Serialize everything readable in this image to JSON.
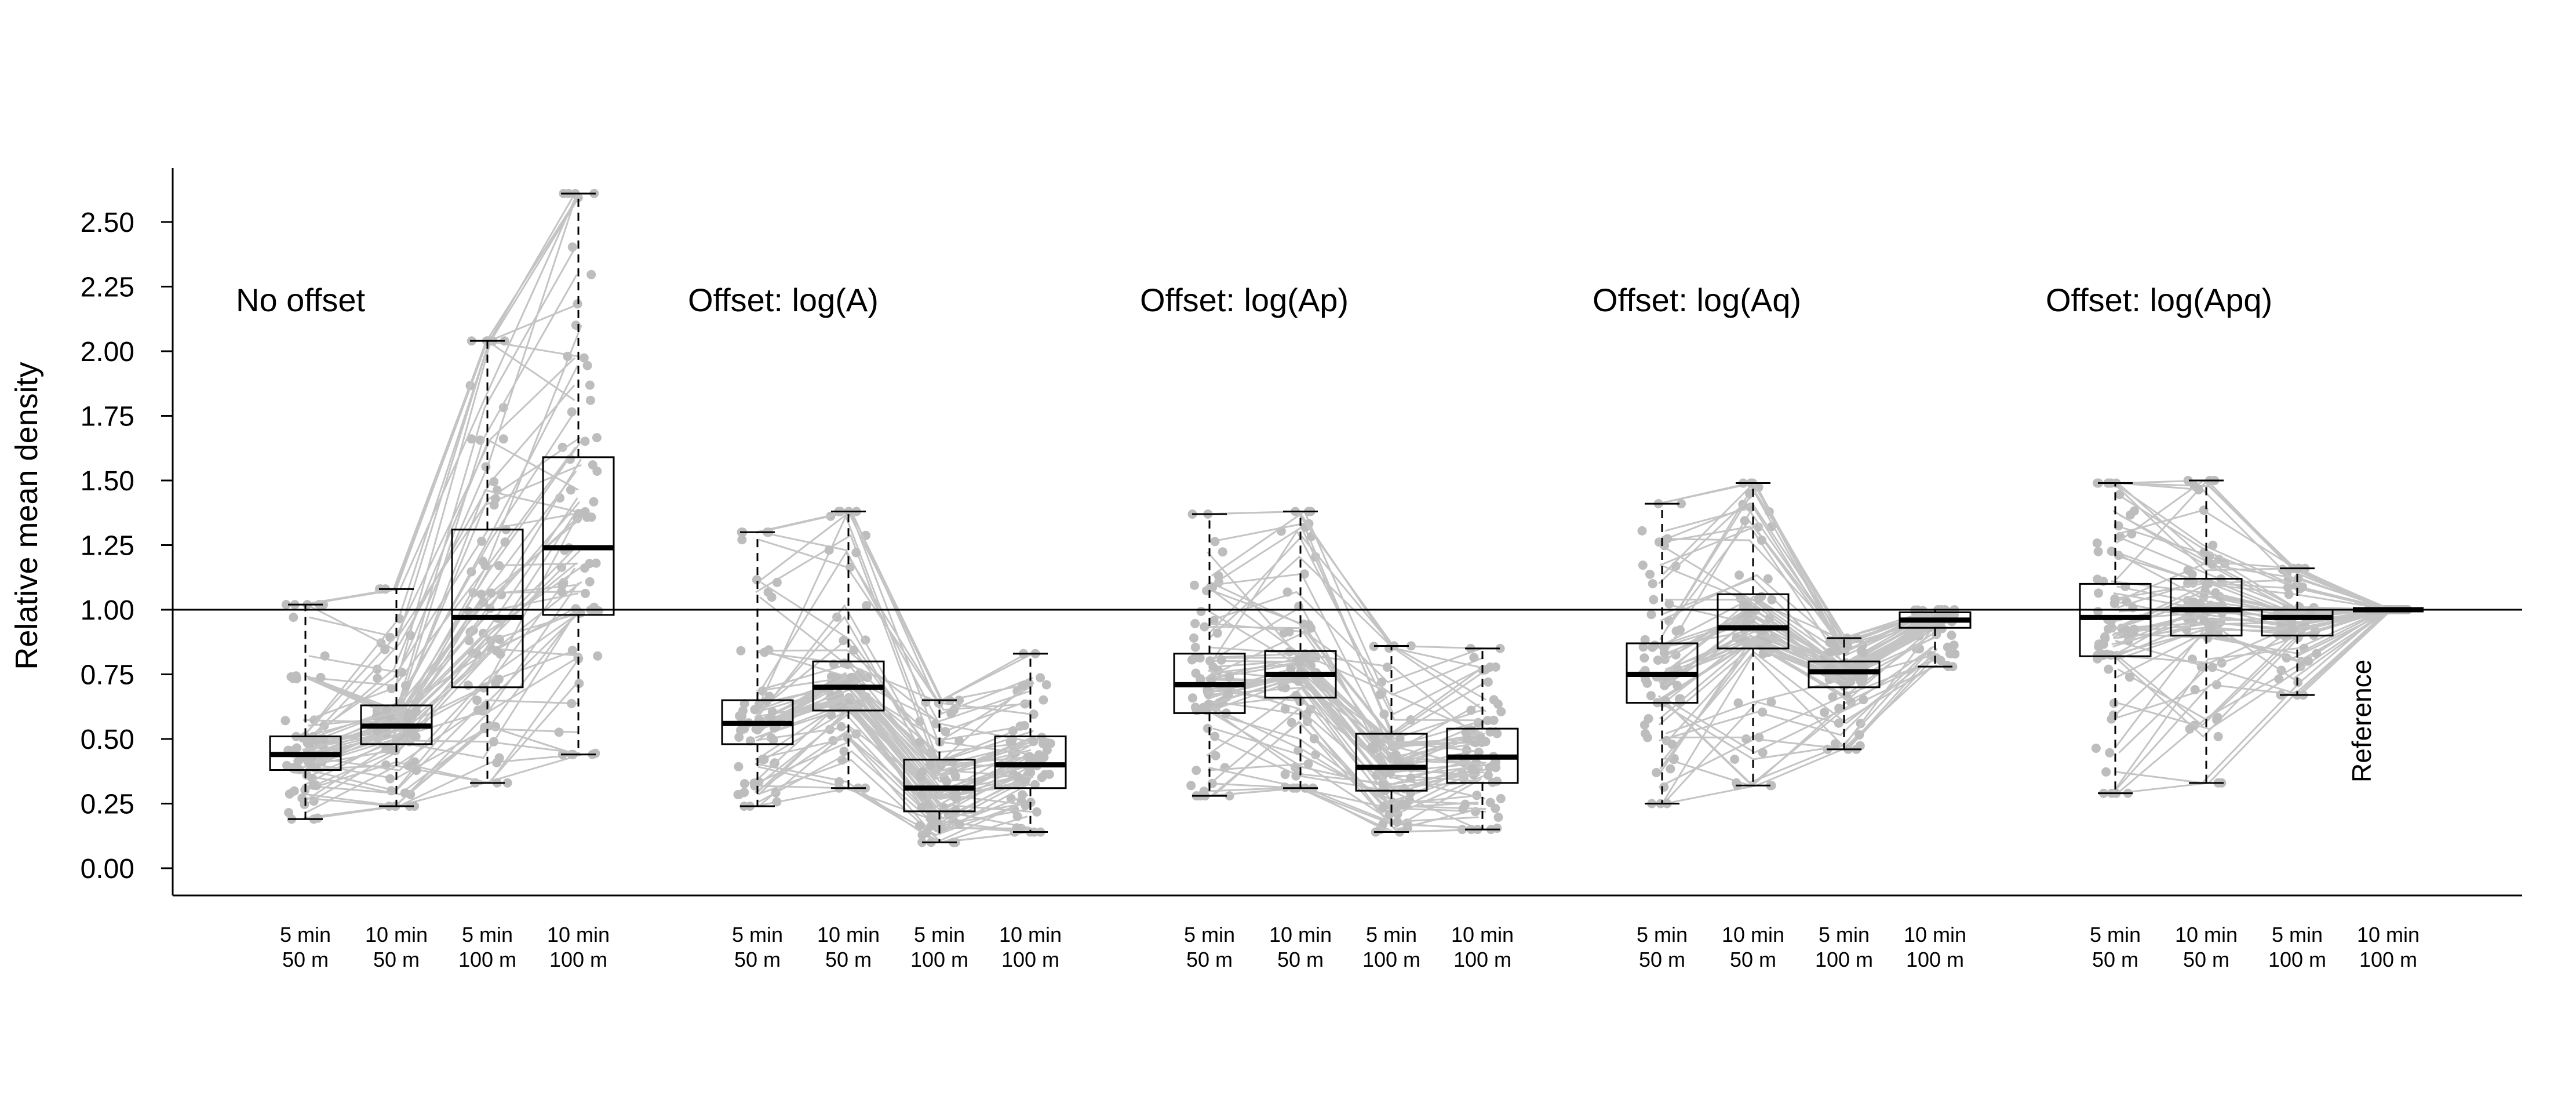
{
  "chart_data": {
    "type": "box",
    "ylabel": "Relative mean density",
    "ylim": [
      -0.1,
      2.75
    ],
    "yticks": [
      "0.00",
      "0.25",
      "0.50",
      "0.75",
      "1.00",
      "1.25",
      "1.50",
      "1.75",
      "2.00",
      "2.25",
      "2.50"
    ],
    "reference_line": 1.0,
    "reference_label": "Reference",
    "categories": [
      [
        "5 min",
        "50 m"
      ],
      [
        "10 min",
        "50 m"
      ],
      [
        "5 min",
        "100 m"
      ],
      [
        "10 min",
        "100 m"
      ]
    ],
    "colors": {
      "points": "#bdbdbd",
      "lines": "#c4c4c4",
      "box": "#000000"
    },
    "panels": [
      {
        "title": "No offset",
        "boxes": [
          {
            "min": 0.19,
            "q1": 0.38,
            "median": 0.44,
            "q3": 0.51,
            "max": 1.02
          },
          {
            "min": 0.24,
            "q1": 0.48,
            "median": 0.55,
            "q3": 0.63,
            "max": 1.08
          },
          {
            "min": 0.33,
            "q1": 0.7,
            "median": 0.97,
            "q3": 1.31,
            "max": 2.04
          },
          {
            "min": 0.44,
            "q1": 0.98,
            "median": 1.24,
            "q3": 1.59,
            "max": 2.61
          }
        ]
      },
      {
        "title": "Offset: log(A)",
        "boxes": [
          {
            "min": 0.24,
            "q1": 0.48,
            "median": 0.56,
            "q3": 0.65,
            "max": 1.3
          },
          {
            "min": 0.31,
            "q1": 0.61,
            "median": 0.7,
            "q3": 0.8,
            "max": 1.38
          },
          {
            "min": 0.1,
            "q1": 0.22,
            "median": 0.31,
            "q3": 0.42,
            "max": 0.65
          },
          {
            "min": 0.14,
            "q1": 0.31,
            "median": 0.4,
            "q3": 0.51,
            "max": 0.83
          }
        ]
      },
      {
        "title": "Offset: log(Ap)",
        "boxes": [
          {
            "min": 0.28,
            "q1": 0.6,
            "median": 0.71,
            "q3": 0.83,
            "max": 1.37
          },
          {
            "min": 0.31,
            "q1": 0.66,
            "median": 0.75,
            "q3": 0.84,
            "max": 1.38
          },
          {
            "min": 0.14,
            "q1": 0.3,
            "median": 0.39,
            "q3": 0.52,
            "max": 0.86
          },
          {
            "min": 0.15,
            "q1": 0.33,
            "median": 0.43,
            "q3": 0.54,
            "max": 0.85
          }
        ]
      },
      {
        "title": "Offset: log(Aq)",
        "boxes": [
          {
            "min": 0.25,
            "q1": 0.64,
            "median": 0.75,
            "q3": 0.87,
            "max": 1.41
          },
          {
            "min": 0.32,
            "q1": 0.85,
            "median": 0.93,
            "q3": 1.06,
            "max": 1.49
          },
          {
            "min": 0.46,
            "q1": 0.7,
            "median": 0.76,
            "q3": 0.8,
            "max": 0.89
          },
          {
            "min": 0.78,
            "q1": 0.93,
            "median": 0.96,
            "q3": 0.99,
            "max": 1.0
          }
        ]
      },
      {
        "title": "Offset: log(Apq)",
        "boxes": [
          {
            "min": 0.29,
            "q1": 0.82,
            "median": 0.97,
            "q3": 1.1,
            "max": 1.49
          },
          {
            "min": 0.33,
            "q1": 0.9,
            "median": 1.0,
            "q3": 1.12,
            "max": 1.5
          },
          {
            "min": 0.67,
            "q1": 0.9,
            "median": 0.97,
            "q3": 1.0,
            "max": 1.16
          },
          {
            "min": 1.0,
            "q1": 1.0,
            "median": 1.0,
            "q3": 1.0,
            "max": 1.0
          }
        ]
      }
    ]
  }
}
